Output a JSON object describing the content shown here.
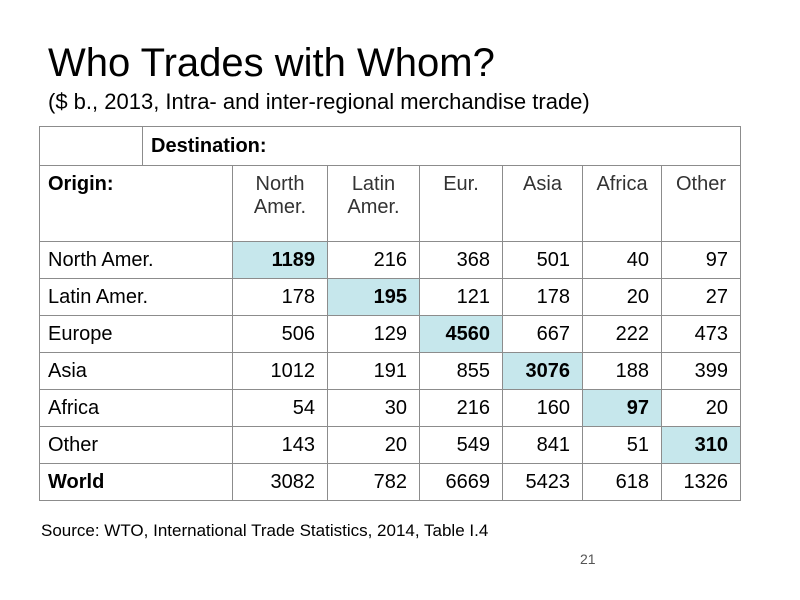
{
  "slide": {
    "title": "Who Trades with Whom?",
    "subtitle": "($ b., 2013, Intra- and inter-regional merchandise trade)",
    "source": "Source:  WTO, International Trade Statistics, 2014, Table I.4",
    "page_number": "21"
  },
  "table": {
    "destination_label": "Destination:",
    "origin_label": "Origin:",
    "columns": [
      {
        "line1": "North",
        "line2": "Amer."
      },
      {
        "line1": "Latin",
        "line2": "Amer."
      },
      {
        "line1": "Eur.",
        "line2": ""
      },
      {
        "line1": "Asia",
        "line2": ""
      },
      {
        "line1": "Africa",
        "line2": ""
      },
      {
        "line1": "Other",
        "line2": ""
      }
    ],
    "rows": [
      {
        "label": "North Amer.",
        "values": [
          "1189",
          "216",
          "368",
          "501",
          "40",
          "97"
        ]
      },
      {
        "label": "Latin Amer.",
        "values": [
          "178",
          "195",
          "121",
          "178",
          "20",
          "27"
        ]
      },
      {
        "label": "Europe",
        "values": [
          "506",
          "129",
          "4560",
          "667",
          "222",
          "473"
        ]
      },
      {
        "label": "Asia",
        "values": [
          "1012",
          "191",
          "855",
          "3076",
          "188",
          "399"
        ]
      },
      {
        "label": "Africa",
        "values": [
          "54",
          "30",
          "216",
          "160",
          "97",
          "20"
        ]
      },
      {
        "label": "Other",
        "values": [
          "143",
          "20",
          "549",
          "841",
          "51",
          "310"
        ]
      },
      {
        "label": "World",
        "values": [
          "3082",
          "782",
          "6669",
          "5423",
          "618",
          "1326"
        ]
      }
    ],
    "highlight_color": "#c6e7ec"
  }
}
